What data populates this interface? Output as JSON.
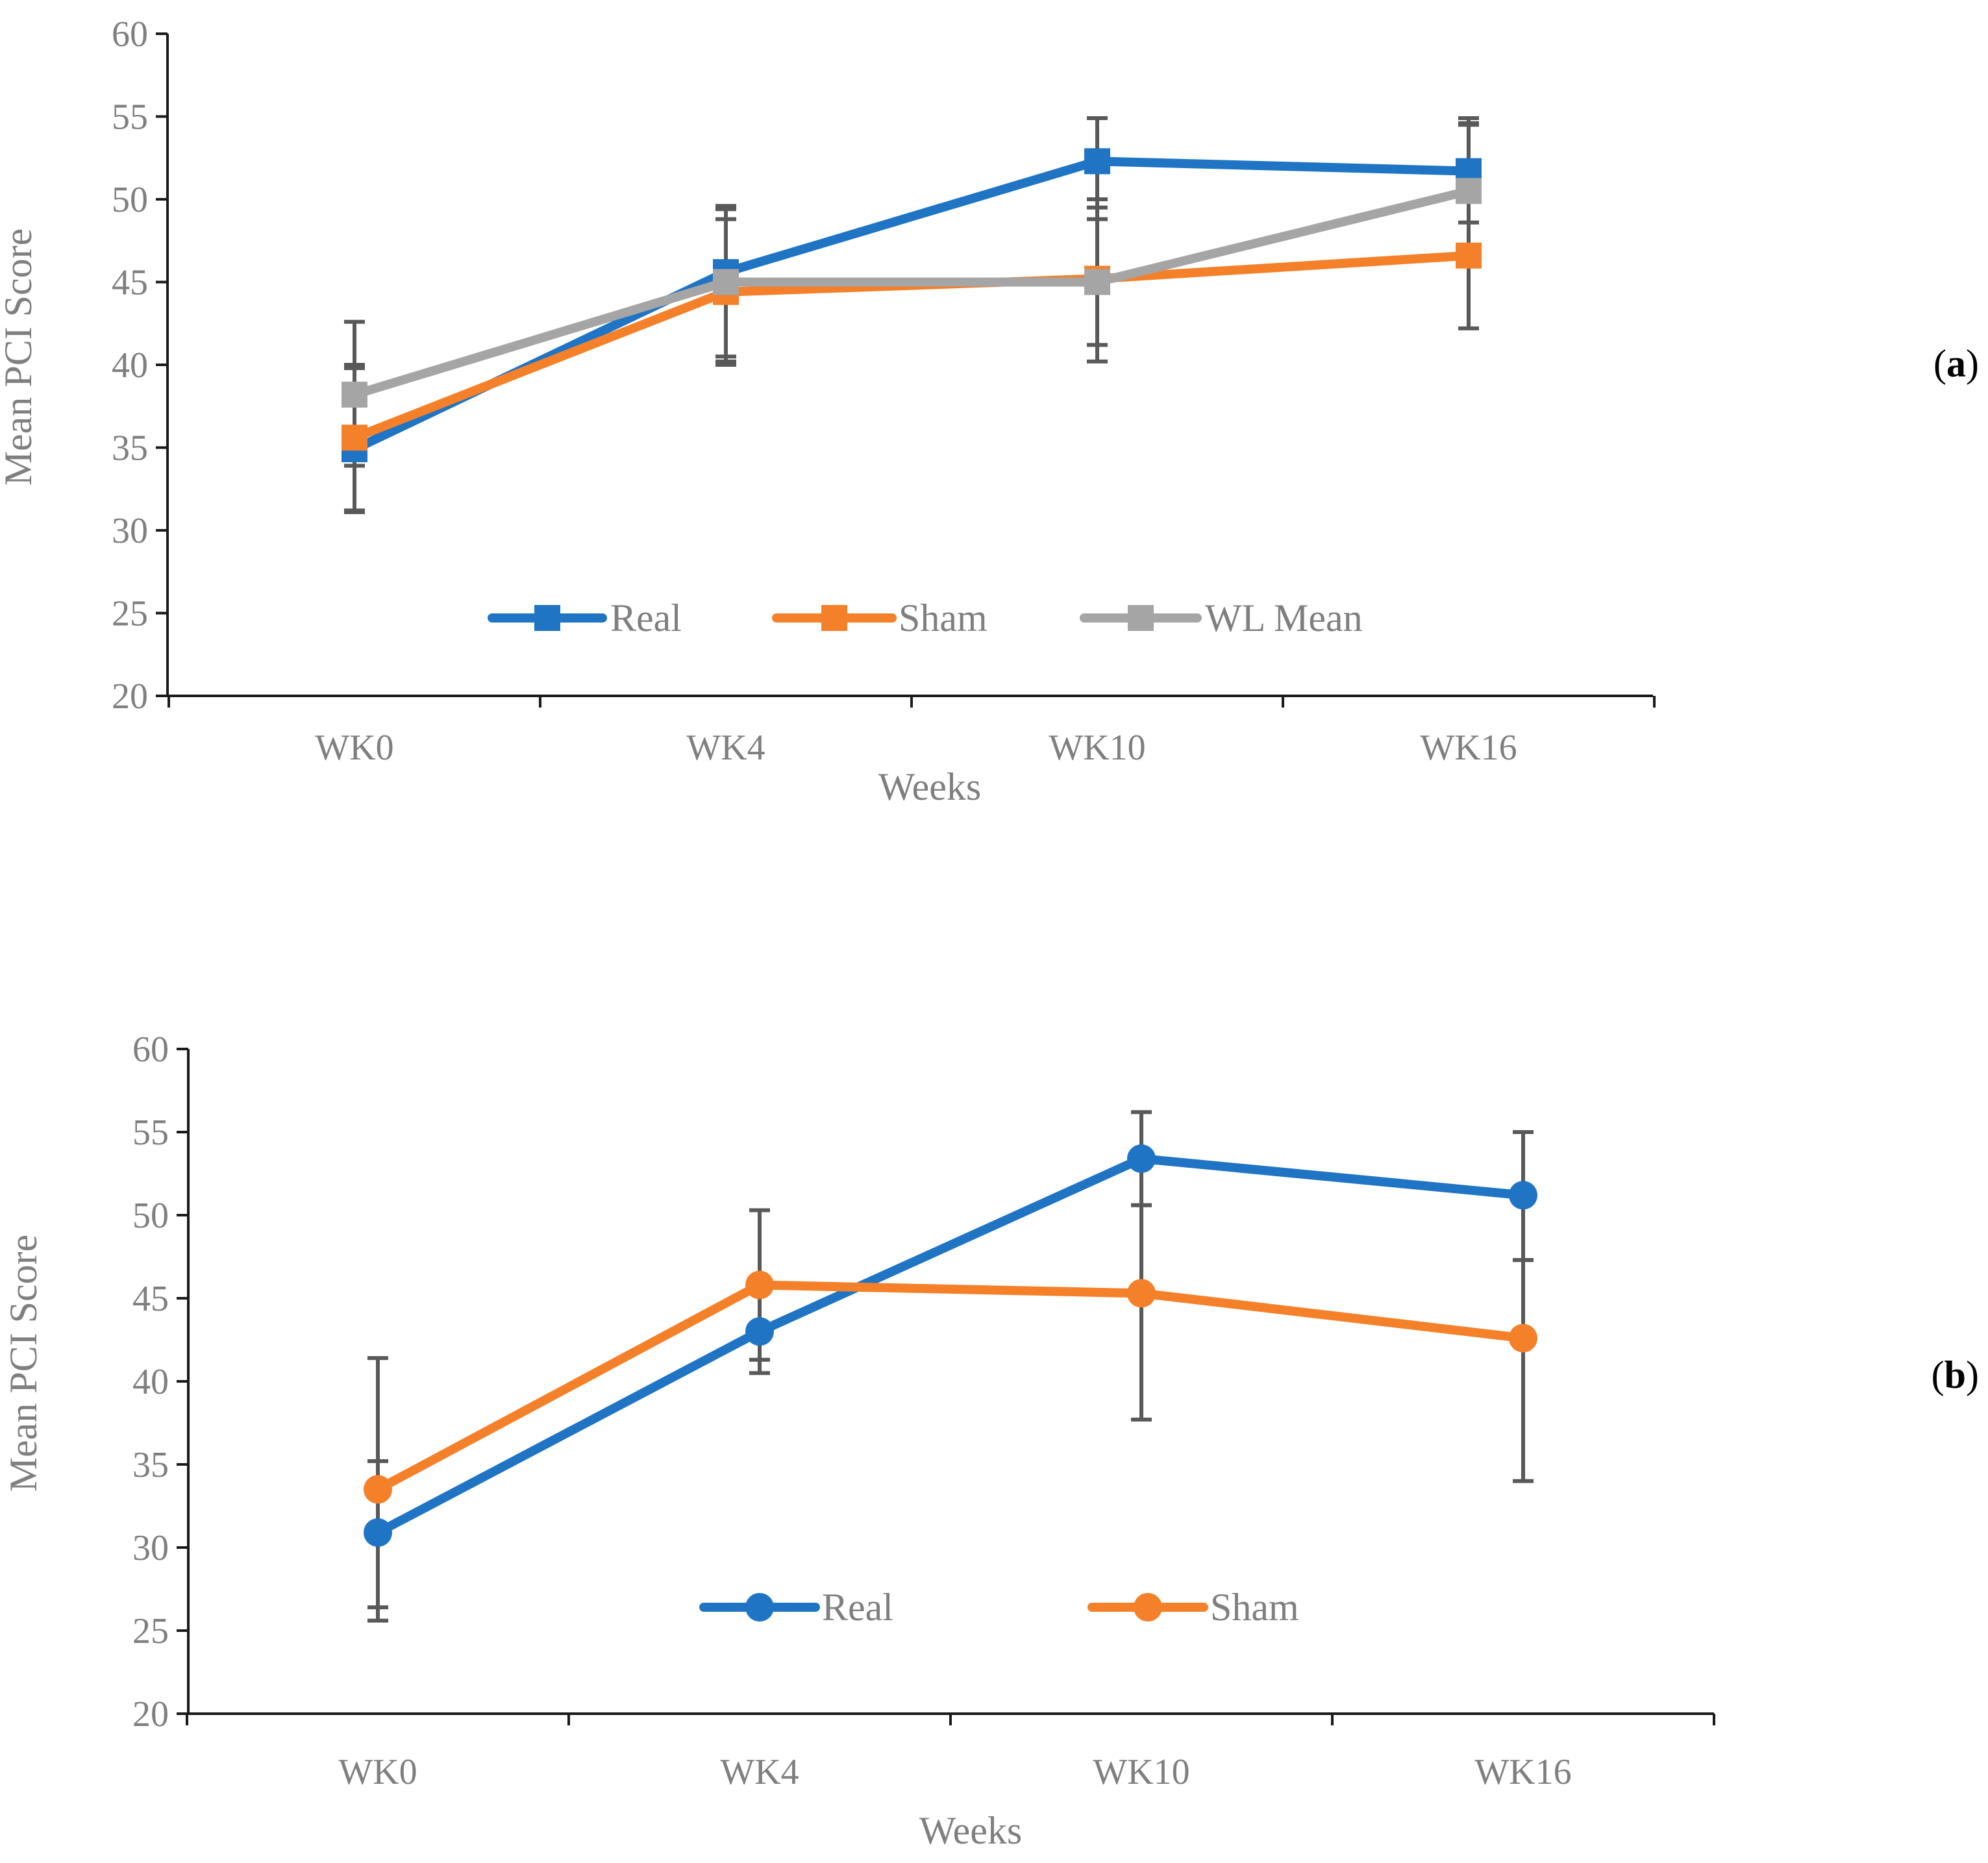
{
  "chart_data": [
    {
      "type": "line",
      "panel_label": "(a)",
      "panel_label_open": "(",
      "panel_label_letter": "a",
      "panel_label_close": ")",
      "xlabel": "Weeks",
      "ylabel": "Mean PCI Score",
      "ylim": [
        20,
        60
      ],
      "yticks": [
        20,
        25,
        30,
        35,
        40,
        45,
        50,
        55,
        60
      ],
      "categories": [
        "WK0",
        "WK4",
        "WK10",
        "WK16"
      ],
      "legend_position": "bottom-center inside plot",
      "marker": "square",
      "series": [
        {
          "name": "Real",
          "color": "#1f74c4",
          "values": [
            34.9,
            45.6,
            52.3,
            51.7
          ],
          "err_low": [
            31.2,
            40.2,
            48.8,
            48.6
          ],
          "err_high": [
            39.8,
            49.6,
            54.9,
            54.9
          ]
        },
        {
          "name": "Sham",
          "color": "#f5802a",
          "values": [
            35.6,
            44.4,
            45.2,
            46.6
          ],
          "err_low": [
            31.1,
            40.0,
            40.2,
            42.2
          ],
          "err_high": [
            40.0,
            48.8,
            50.0,
            54.6
          ]
        },
        {
          "name": "WL Mean",
          "color": "#a5a5a5",
          "values": [
            38.2,
            45.0,
            45.0,
            50.5
          ],
          "err_low": [
            33.9,
            40.5,
            41.2,
            46.6
          ],
          "err_high": [
            42.6,
            49.4,
            49.5,
            54.5
          ]
        }
      ]
    },
    {
      "type": "line",
      "panel_label": "(b)",
      "panel_label_open": "(",
      "panel_label_letter": "b",
      "panel_label_close": ")",
      "xlabel": "Weeks",
      "ylabel": "Mean PCI Score",
      "ylim": [
        20,
        60
      ],
      "yticks": [
        20,
        25,
        30,
        35,
        40,
        45,
        50,
        55,
        60
      ],
      "categories": [
        "WK0",
        "WK4",
        "WK10",
        "WK16"
      ],
      "legend_position": "bottom-center inside plot",
      "marker": "circle",
      "series": [
        {
          "name": "Real",
          "color": "#1f74c4",
          "values": [
            30.9,
            43.0,
            53.4,
            51.2
          ],
          "err_low": [
            25.6,
            40.5,
            50.6,
            47.3
          ],
          "err_high": [
            35.2,
            45.5,
            56.2,
            55.0
          ]
        },
        {
          "name": "Sham",
          "color": "#f5802a",
          "values": [
            33.5,
            45.8,
            45.3,
            42.6
          ],
          "err_low": [
            26.4,
            41.3,
            37.7,
            34.0
          ],
          "err_high": [
            41.4,
            50.3,
            50.6,
            47.3
          ]
        }
      ]
    }
  ]
}
